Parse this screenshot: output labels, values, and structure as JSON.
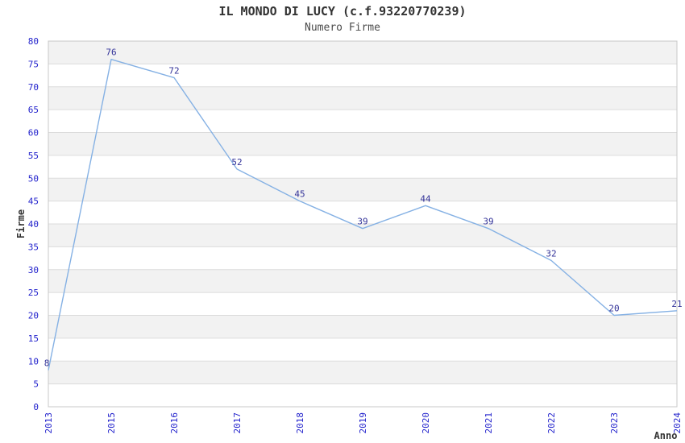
{
  "chart_data": {
    "type": "line",
    "title": "IL MONDO DI LUCY (c.f.93220770239)",
    "subtitle": "Numero Firme",
    "xlabel": "Anno",
    "ylabel": "Firme",
    "categories": [
      "2013",
      "2015",
      "2016",
      "2017",
      "2018",
      "2019",
      "2020",
      "2021",
      "2022",
      "2023",
      "2024"
    ],
    "values": [
      8,
      76,
      72,
      52,
      45,
      39,
      44,
      39,
      32,
      20,
      21
    ],
    "yticks": [
      0,
      5,
      10,
      15,
      20,
      25,
      30,
      35,
      40,
      45,
      50,
      55,
      60,
      65,
      70,
      75,
      80
    ],
    "ylim": [
      0,
      80
    ],
    "grid": "horizontal-bands-every-5",
    "legend_position": "none",
    "colors": {
      "line": "#85b1e4",
      "tick_labels": "#2222cc",
      "value_labels": "#333399",
      "band_fill": "#f2f2f2",
      "gridline": "#dcdcdc",
      "plot_border": "#c8c8c8",
      "title_text": "#333333"
    }
  }
}
